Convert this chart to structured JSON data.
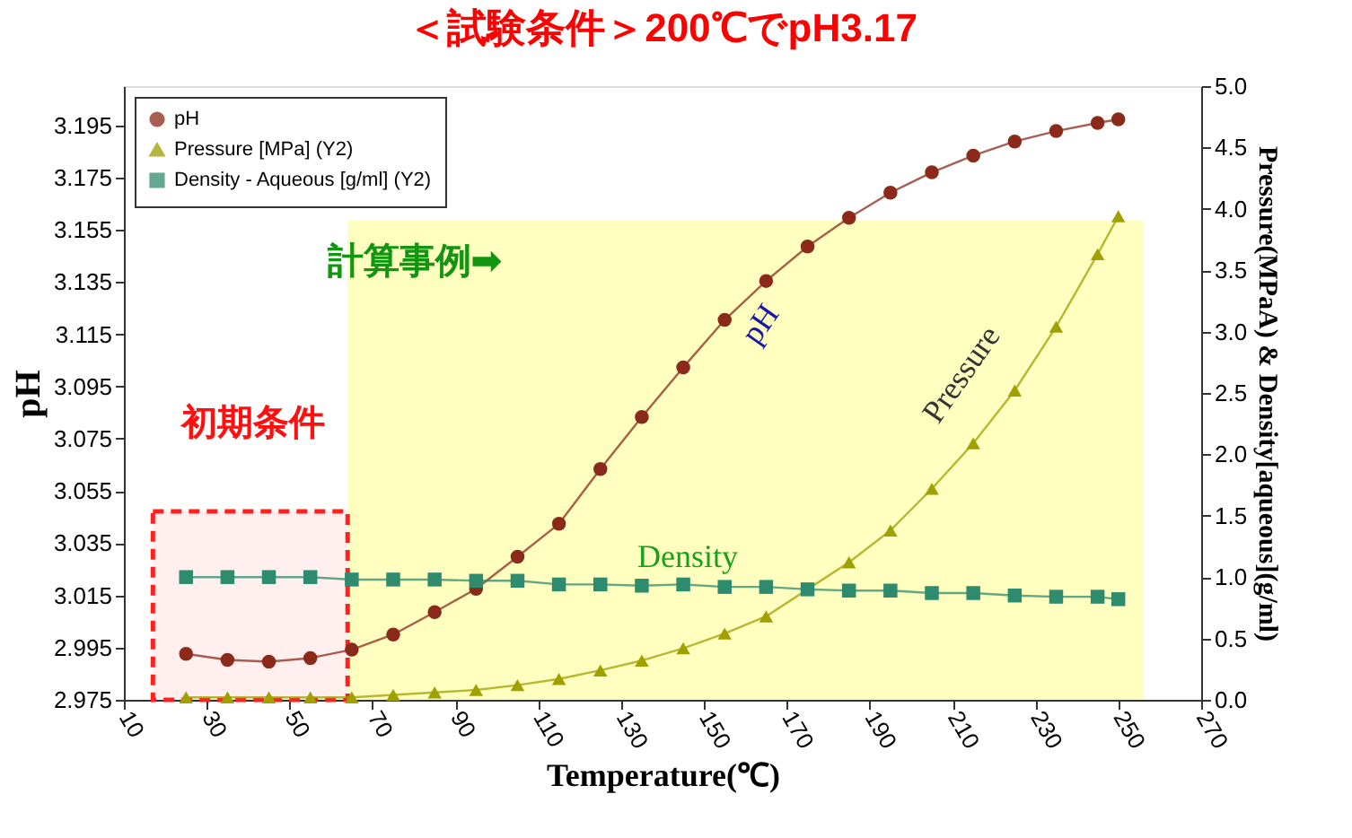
{
  "chart_data": {
    "type": "line",
    "title": "＜試験条件＞200℃でpH3.17",
    "xlabel": "Temperature(℃)",
    "ylabel": "pH",
    "y2label": "Pressure(MPaA)  & Density[aqueous](g/ml)",
    "x": [
      25,
      35,
      45,
      55,
      65,
      75,
      85,
      95,
      105,
      115,
      125,
      135,
      145,
      155,
      165,
      175,
      185,
      195,
      205,
      215,
      225,
      235,
      245,
      250
    ],
    "series": [
      {
        "name": "pH",
        "color": "#8b2a1a",
        "marker": "circle",
        "values": [
          2.9926,
          2.9903,
          2.9896,
          2.991,
          2.9942,
          3.0,
          3.0086,
          3.0175,
          3.0298,
          3.0424,
          3.0634,
          3.0833,
          3.1023,
          3.1205,
          3.1354,
          3.1486,
          3.1596,
          3.1692,
          3.177,
          3.1834,
          3.1888,
          3.1928,
          3.1959,
          3.1973
        ]
      },
      {
        "name": "Pressure [MPa] (Y2)",
        "color": "#a0a000",
        "marker": "triangle",
        "axis": "y2",
        "values": [
          0.02,
          0.02,
          0.02,
          0.02,
          0.02,
          0.04,
          0.06,
          0.08,
          0.12,
          0.17,
          0.24,
          0.32,
          0.42,
          0.54,
          0.68,
          0.9,
          1.12,
          1.38,
          1.72,
          2.09,
          2.52,
          3.04,
          3.63,
          3.94
        ]
      },
      {
        "name": "Density - Aqueous [g/ml] (Y2)",
        "color": "#2e8b6e",
        "marker": "square",
        "axis": "y2",
        "values": [
          1.0,
          1.0,
          1.0,
          1.0,
          0.98,
          0.98,
          0.98,
          0.97,
          0.97,
          0.94,
          0.94,
          0.93,
          0.94,
          0.92,
          0.92,
          0.9,
          0.89,
          0.89,
          0.87,
          0.87,
          0.85,
          0.84,
          0.84,
          0.82
        ]
      }
    ],
    "xlim": [
      10,
      270
    ],
    "xticks": [
      10,
      30,
      50,
      70,
      90,
      110,
      130,
      150,
      170,
      190,
      210,
      230,
      250,
      270
    ],
    "ylim": [
      2.975,
      3.21
    ],
    "yticks": [
      2.975,
      2.995,
      3.015,
      3.035,
      3.055,
      3.075,
      3.095,
      3.115,
      3.135,
      3.155,
      3.175,
      3.195
    ],
    "y2lim": [
      0,
      5
    ],
    "y2ticks": [
      {
        "value": 0,
        "label": "0.0"
      },
      0.5,
      {
        "value": 1,
        "label": "1.0"
      },
      1.5,
      {
        "value": 2,
        "label": "2.0"
      },
      2.5,
      {
        "value": 3,
        "label": "3.0"
      },
      3.5,
      {
        "value": 4,
        "label": "4.0"
      },
      4.5,
      {
        "value": 5,
        "label": "5.0"
      }
    ],
    "bands": [
      {
        "axis": "x",
        "from": 64,
        "to": 256,
        "color": "#ffffc0"
      },
      {
        "axis": "x",
        "from": 17,
        "to": 64,
        "color": "#ff2020"
      }
    ],
    "annotations": [
      "pH",
      "Pressure",
      "Density",
      "計算事例➡",
      "初期条件"
    ],
    "legend": "top left",
    "grid": false
  }
}
